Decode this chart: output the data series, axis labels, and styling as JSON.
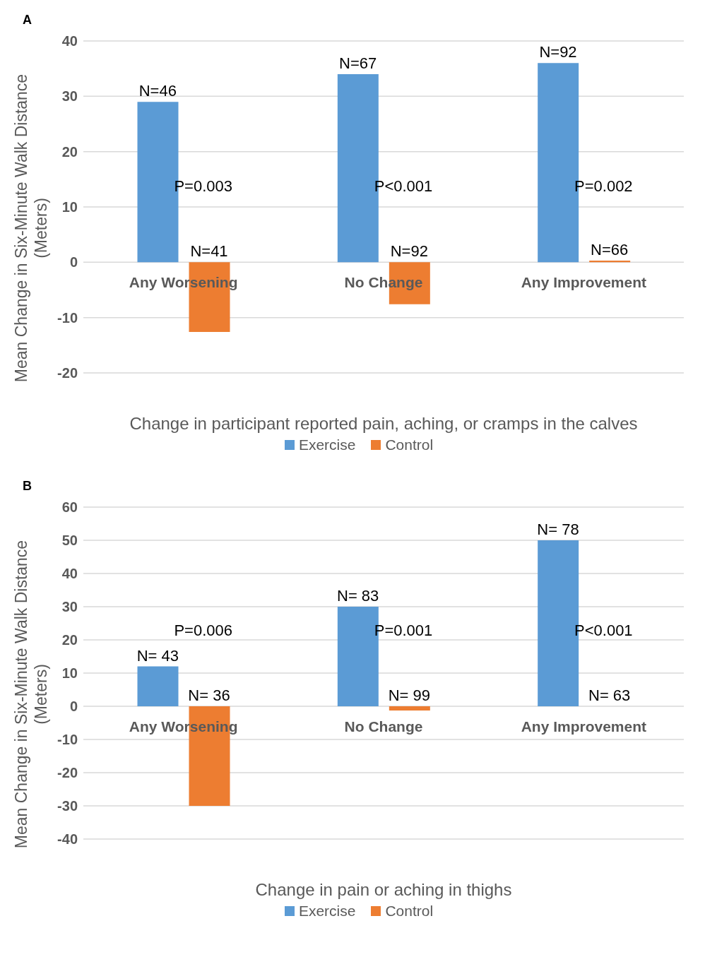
{
  "chart_data": [
    {
      "type": "bar",
      "title": "A",
      "ylabel": "Mean Change in Six-Minute Walk Distance (Meters)",
      "xlabel": "Change in participant reported pain, aching, or cramps in the calves",
      "categories": [
        "Any Worsening",
        "No Change",
        "Any Improvement"
      ],
      "series": [
        {
          "name": "Exercise",
          "color": "#5b9bd5",
          "values": [
            29,
            34,
            36
          ]
        },
        {
          "name": "Control",
          "color": "#ed7d31",
          "values": [
            -12.6,
            -7.6,
            0.3
          ]
        }
      ],
      "annotations": [
        "N=46",
        "N=41",
        "P=0.003",
        "N=67",
        "N=92",
        "P<0.001",
        "N=92",
        "N=66",
        "P=0.002"
      ],
      "ylim": [
        -20,
        40
      ],
      "yticks": [
        -20,
        -10,
        0,
        10,
        20,
        30,
        40
      ],
      "grid": "y",
      "legend": "bottom"
    },
    {
      "type": "bar",
      "title": "B",
      "ylabel": "Mean Change in Six-Minute Walk Distance (Meters)",
      "xlabel": "Change in pain or aching in thighs",
      "categories": [
        "Any Worsening",
        "No Change",
        "Any Improvement"
      ],
      "series": [
        {
          "name": "Exercise",
          "color": "#5b9bd5",
          "values": [
            12,
            30,
            50
          ]
        },
        {
          "name": "Control",
          "color": "#ed7d31",
          "values": [
            -30,
            -1.3,
            0
          ]
        }
      ],
      "annotations": [
        "N= 43",
        "N= 36",
        "P=0.006",
        "N= 83",
        "N= 99",
        "P=0.001",
        "N= 78",
        "N= 63",
        "P<0.001"
      ],
      "ylim": [
        -40,
        60
      ],
      "yticks": [
        -40,
        -30,
        -20,
        -10,
        0,
        10,
        20,
        30,
        40,
        50,
        60
      ],
      "grid": "y",
      "legend": "bottom"
    }
  ]
}
